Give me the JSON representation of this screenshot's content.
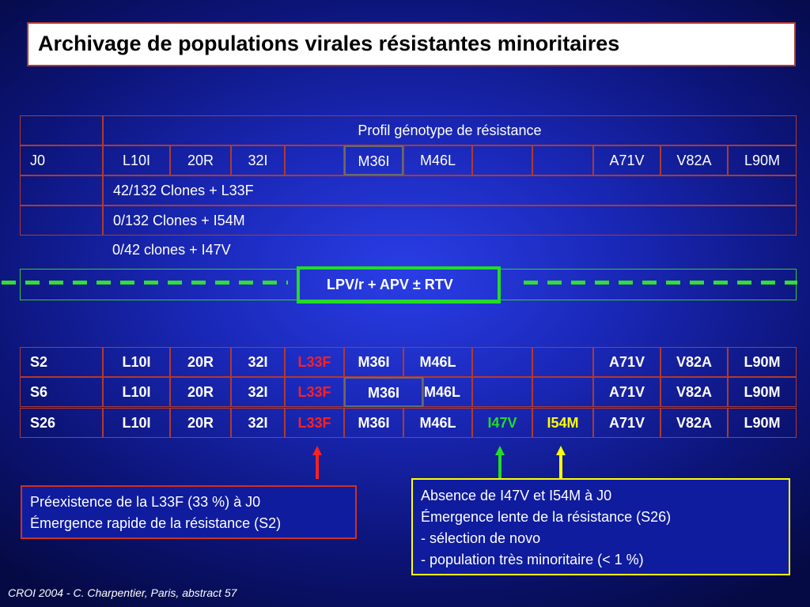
{
  "title": "Archivage de populations virales résistantes minoritaires",
  "top_table": {
    "header": "Profil génotype de résistance",
    "j0_row": [
      "J0",
      "L10I",
      "20R",
      "32I",
      "",
      "M36I",
      "M46L",
      "",
      "",
      "A71V",
      "V82A",
      "L90M"
    ],
    "clone_rows": [
      "42/132 Clones + L33F",
      "0/132 Clones + I54M",
      "0/42 clones + I47V"
    ]
  },
  "treatment": "LPV/r + APV ± RTV",
  "bottom_table": {
    "rows": [
      [
        "S2",
        "L10I",
        "20R",
        "32I",
        "L33F",
        "M36I",
        "M46L",
        "",
        "",
        "A71V",
        "V82A",
        "L90M"
      ],
      [
        "S6",
        "L10I",
        "20R",
        "32I",
        "L33F",
        "M36I",
        "M46L",
        "",
        "",
        "A71V",
        "V82A",
        "L90M"
      ],
      [
        "S26",
        "L10I",
        "20R",
        "32I",
        "L33F",
        "M36I",
        "M46L",
        "I47V",
        "I54M",
        "A71V",
        "V82A",
        "L90M"
      ]
    ]
  },
  "colors": {
    "red": "#ff2020",
    "green": "#22dd22",
    "yellow": "#ffff00"
  },
  "note_left": {
    "lines": [
      "Préexistence de la L33F (33 %) à J0",
      "Émergence rapide de la résistance (S2)"
    ]
  },
  "note_right": {
    "lines": [
      "Absence de I47V et I54M à J0",
      "Émergence lente de la résistance (S26)",
      "- sélection de novo",
      "- population très minoritaire (< 1 %)"
    ]
  },
  "footer": "CROI 2004 - C. Charpentier, Paris, abstract 57"
}
